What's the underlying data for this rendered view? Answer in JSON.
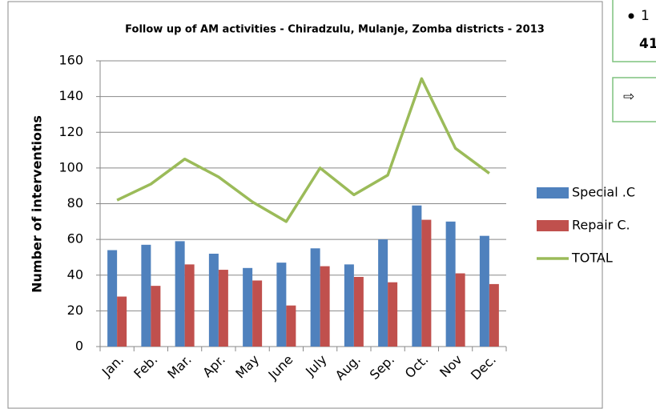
{
  "chart_data": {
    "type": "bar_line",
    "title": "Follow up of AM activities - Chiradzulu, Mulanje, Zomba districts - 2013",
    "y_label": "Number of interventions",
    "categories": [
      "Jan.",
      "Feb.",
      "Mar.",
      "Apr.",
      "May",
      "June",
      "July",
      "Aug.",
      "Sep.",
      "Oct.",
      "Nov",
      "Dec."
    ],
    "series": [
      {
        "name": "Special .C",
        "color": "#4f81bd",
        "kind": "bar",
        "values": [
          54,
          57,
          59,
          52,
          44,
          47,
          55,
          46,
          60,
          79,
          70,
          62
        ]
      },
      {
        "name": "Repair C.",
        "color": "#c0504d",
        "kind": "bar",
        "values": [
          28,
          34,
          46,
          43,
          37,
          23,
          45,
          39,
          36,
          71,
          41,
          35
        ]
      },
      {
        "name": "TOTAL",
        "color": "#9bbb59",
        "kind": "line",
        "values": [
          82,
          91,
          105,
          95,
          81,
          70,
          100,
          85,
          96,
          150,
          111,
          97
        ]
      }
    ],
    "ylim": [
      0,
      160
    ],
    "yticks": [
      0,
      20,
      40,
      60,
      80,
      100,
      120,
      140,
      160
    ],
    "grid": true,
    "legend": "right"
  },
  "side_panel": {
    "lines": [
      "1",
      "41"
    ],
    "arrow": "⇨"
  }
}
